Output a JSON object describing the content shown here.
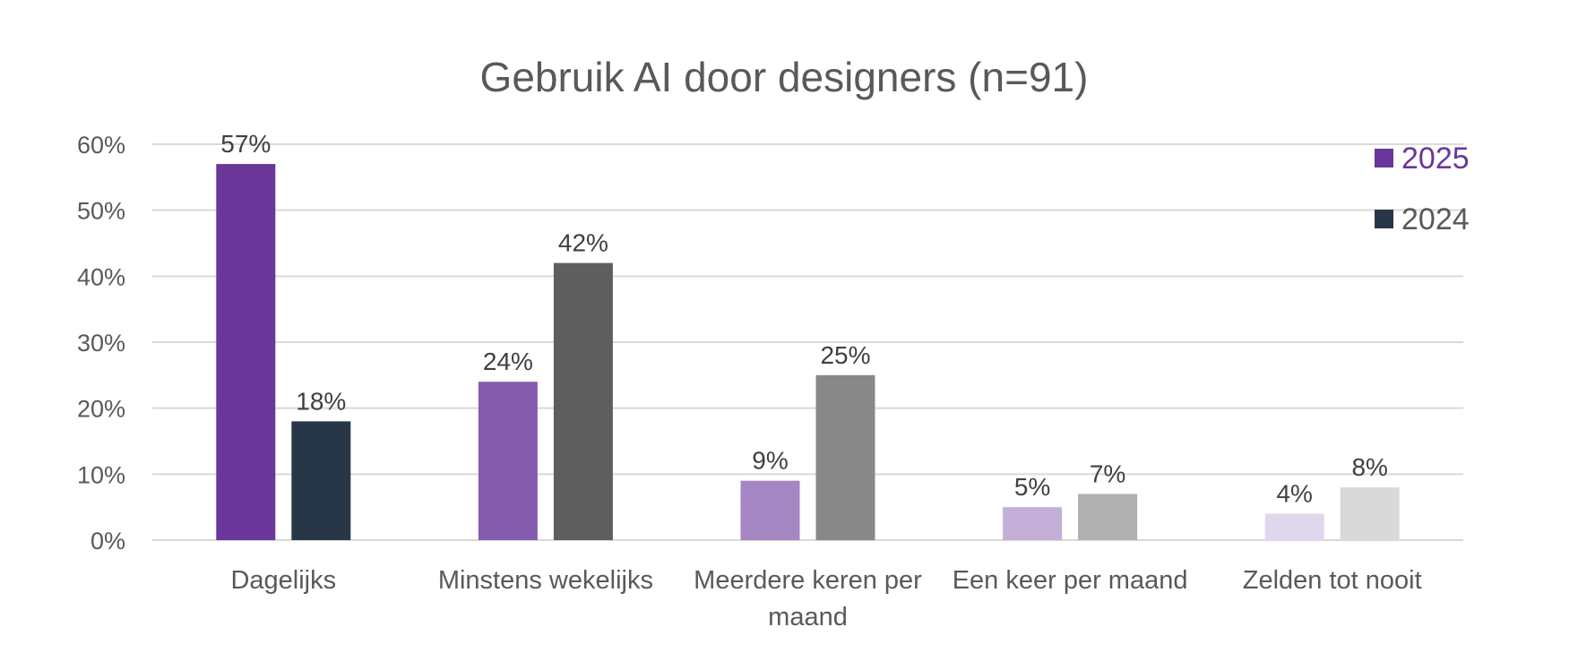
{
  "chart_data": {
    "type": "bar",
    "title": "Gebruik AI door designers (n=91)",
    "categories": [
      [
        "Dagelijks"
      ],
      [
        "Minstens wekelijks"
      ],
      [
        "Meerdere keren per",
        "maand"
      ],
      [
        "Een keer per maand"
      ],
      [
        "Zelden tot nooit"
      ]
    ],
    "series": [
      {
        "name": "2025",
        "values": [
          57,
          24,
          9,
          5,
          4
        ],
        "colors": [
          "#6a3699",
          "#845cae",
          "#a486c2",
          "#c3afd8",
          "#e0d6ed"
        ]
      },
      {
        "name": "2024",
        "values": [
          18,
          42,
          25,
          7,
          8
        ],
        "colors": [
          "#283747",
          "#5e5e5e",
          "#888888",
          "#b0b0b0",
          "#d9d9d9"
        ]
      }
    ],
    "legend": {
      "placement": "top-right",
      "items": [
        {
          "label": "2025",
          "swatch": "#6a3699",
          "text_color": "#6a3699"
        },
        {
          "label": "2024",
          "swatch": "#283747",
          "text_color": "#595959"
        }
      ]
    },
    "ylim": [
      0,
      60
    ],
    "yticks": [
      0,
      10,
      20,
      30,
      40,
      50,
      60
    ],
    "tick_suffix": "%",
    "grid": true
  }
}
